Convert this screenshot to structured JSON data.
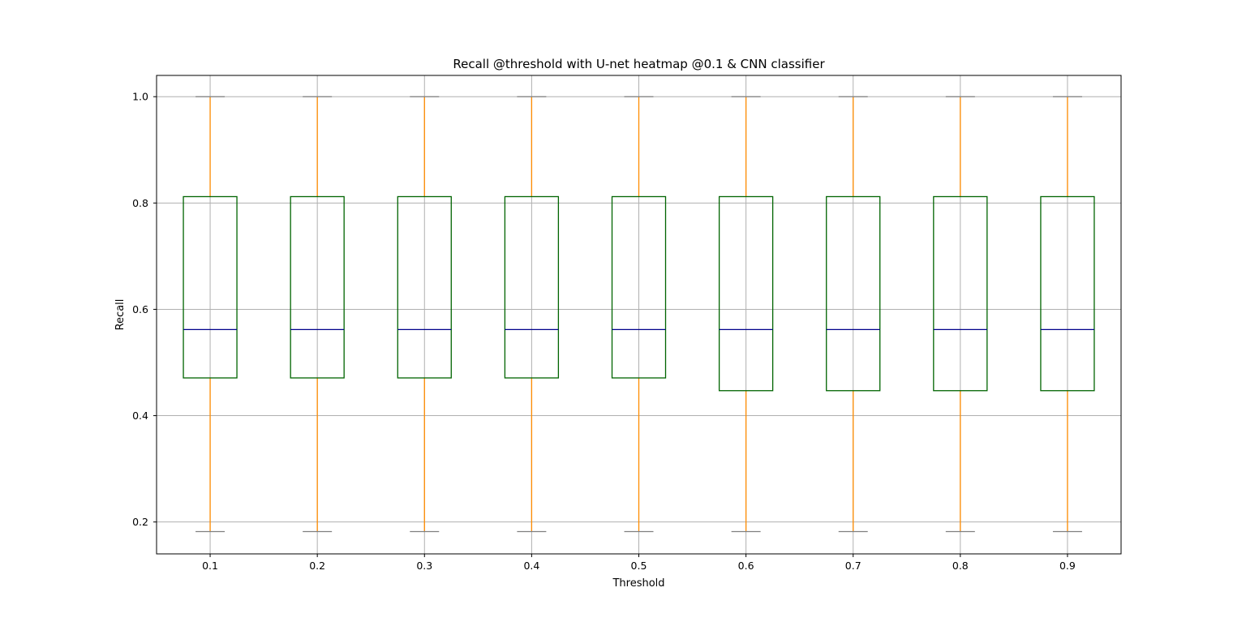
{
  "chart_data": {
    "type": "box",
    "title": "Recall @threshold with U-net heatmap @0.1 & CNN classifier",
    "xlabel": "Threshold",
    "ylabel": "Recall",
    "ylim": [
      0.14,
      1.04
    ],
    "yticks": [
      "0.2",
      "0.4",
      "0.6",
      "0.8",
      "1.0"
    ],
    "grid": true,
    "categories": [
      "0.1",
      "0.2",
      "0.3",
      "0.4",
      "0.5",
      "0.6",
      "0.7",
      "0.8",
      "0.9"
    ],
    "boxes": [
      {
        "whisker_low": 0.182,
        "q1": 0.471,
        "median": 0.562,
        "q3": 0.812,
        "whisker_high": 1.0
      },
      {
        "whisker_low": 0.182,
        "q1": 0.471,
        "median": 0.562,
        "q3": 0.812,
        "whisker_high": 1.0
      },
      {
        "whisker_low": 0.182,
        "q1": 0.471,
        "median": 0.562,
        "q3": 0.812,
        "whisker_high": 1.0
      },
      {
        "whisker_low": 0.182,
        "q1": 0.471,
        "median": 0.562,
        "q3": 0.812,
        "whisker_high": 1.0
      },
      {
        "whisker_low": 0.182,
        "q1": 0.471,
        "median": 0.562,
        "q3": 0.812,
        "whisker_high": 1.0
      },
      {
        "whisker_low": 0.182,
        "q1": 0.447,
        "median": 0.562,
        "q3": 0.812,
        "whisker_high": 1.0
      },
      {
        "whisker_low": 0.182,
        "q1": 0.447,
        "median": 0.562,
        "q3": 0.812,
        "whisker_high": 1.0
      },
      {
        "whisker_low": 0.182,
        "q1": 0.447,
        "median": 0.562,
        "q3": 0.812,
        "whisker_high": 1.0
      },
      {
        "whisker_low": 0.182,
        "q1": 0.447,
        "median": 0.562,
        "q3": 0.812,
        "whisker_high": 1.0
      }
    ],
    "colors": {
      "box": "#006400",
      "median": "#00008b",
      "whisker": "#ff8c00",
      "cap": "#808080",
      "grid": "#b0b0b0",
      "axes": "#000000"
    }
  }
}
